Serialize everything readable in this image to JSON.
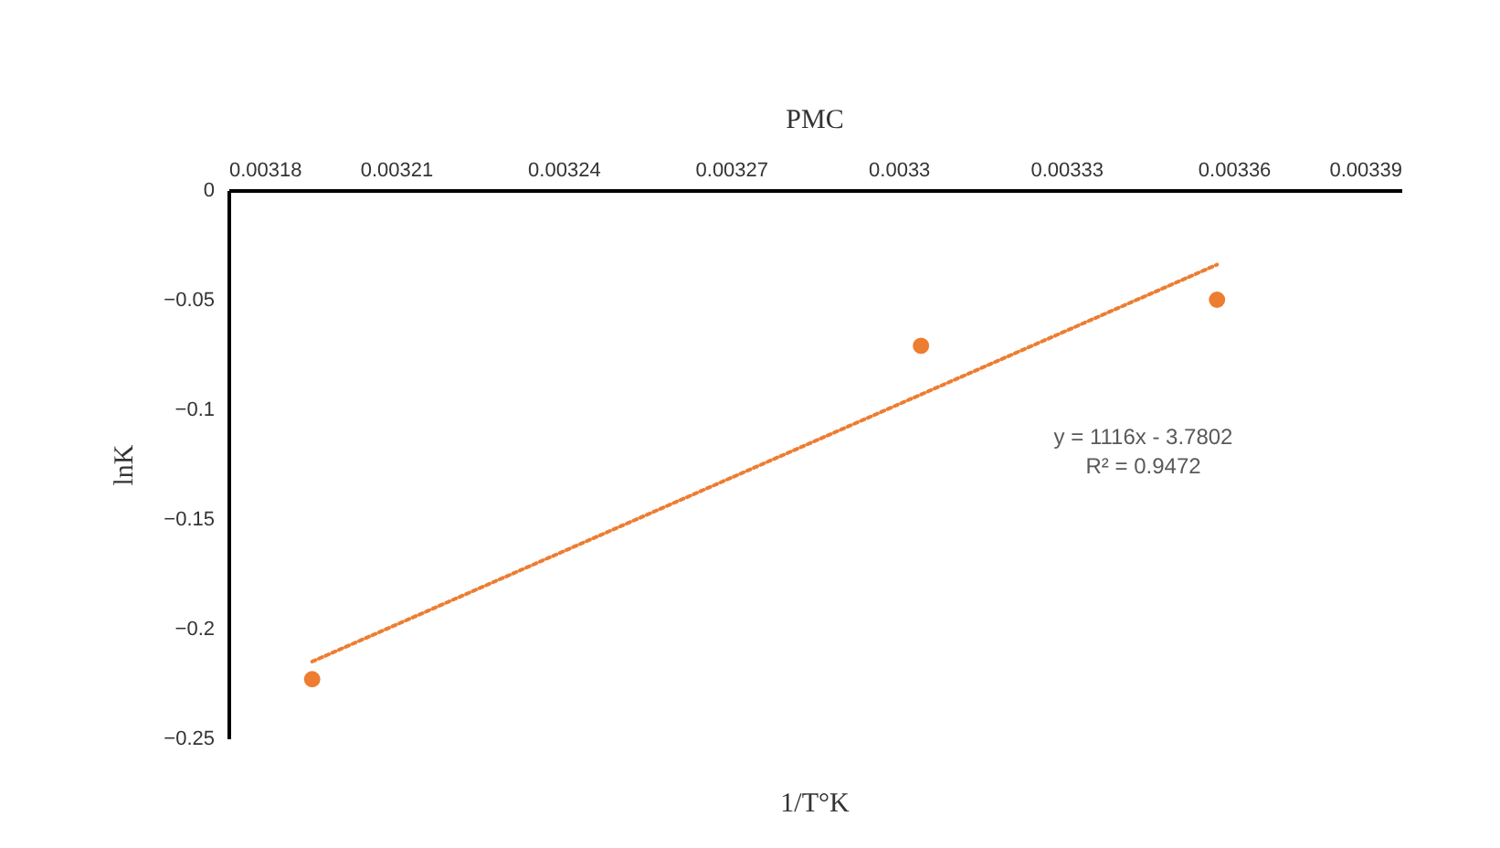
{
  "chart_data": {
    "type": "scatter",
    "title": "PMC",
    "xlabel": "1/T°K",
    "ylabel": "lnK",
    "x": [
      0.003195,
      0.003304,
      0.003357
    ],
    "series": [
      {
        "color": "#ed7d31",
        "values": [
          -0.223,
          -0.071,
          -0.05
        ]
      },
      {
        "type": "line",
        "color": "#ed7d31",
        "line_style": "dotted",
        "marker": "none",
        "x": [
          0.003195,
          0.003357
        ],
        "values": [
          -0.215,
          -0.034
        ]
      }
    ],
    "xlim": [
      0.00318,
      0.00339
    ],
    "xticks": [
      0.00318,
      0.00321,
      0.00324,
      0.00327,
      0.0033,
      0.00333,
      0.00336,
      0.00339
    ],
    "ylim": [
      -0.25,
      0
    ],
    "yticks": [
      0,
      -0.05,
      -0.1,
      -0.15,
      -0.2,
      -0.25
    ],
    "marker": "circle",
    "grid": false,
    "annotations": [
      "y = 1116x - 3.7802",
      "R² = 0.9472"
    ]
  }
}
